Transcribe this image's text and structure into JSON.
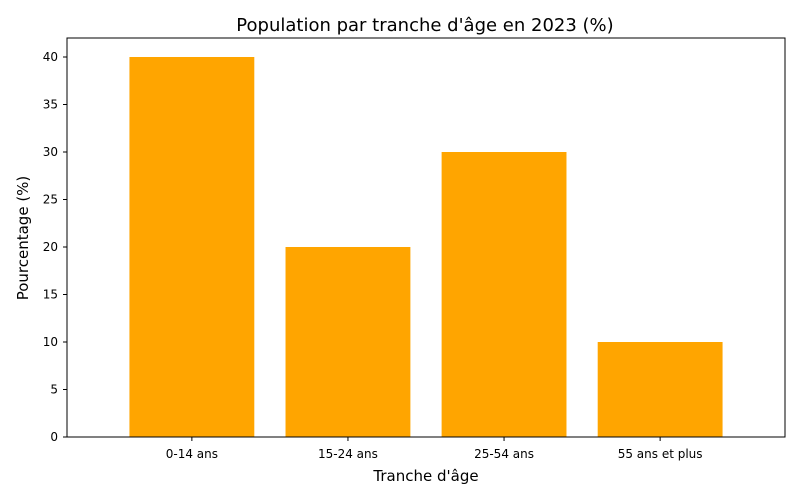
{
  "colors": {
    "bar": "#ffa500",
    "axis": "#000000",
    "background": "#ffffff"
  },
  "chart_data": {
    "type": "bar",
    "title": "Population par tranche d'âge en 2023 (%)",
    "xlabel": "Tranche d'âge",
    "ylabel": "Pourcentage (%)",
    "categories": [
      "0-14 ans",
      "15-24 ans",
      "25-54 ans",
      "55 ans et plus"
    ],
    "values": [
      40,
      20,
      30,
      10
    ],
    "ylim": [
      0,
      42
    ],
    "yticks": [
      0,
      5,
      10,
      15,
      20,
      25,
      30,
      35,
      40
    ],
    "grid": false,
    "legend": "none"
  }
}
